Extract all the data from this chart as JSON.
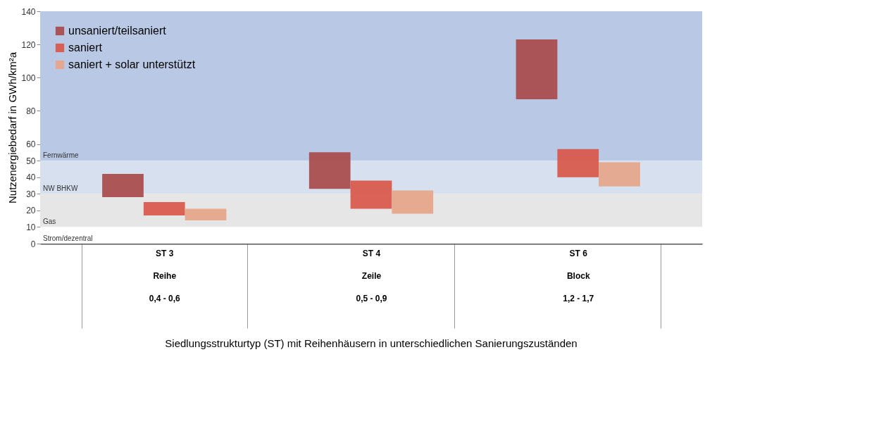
{
  "chart_data": {
    "type": "bar",
    "annotations": [
      "Siedlungsstrukturtyp (ST) mit Reihenhäusern in unterschiedlichen Sanierungszuständen"
    ],
    "ylabel": "Nutzenergiebedarf in GWh/km²a",
    "categories": [
      "ST 3\nReihe\n0,4 - 0,6",
      "ST 4\nZeile\n0,5 - 0,9",
      "ST 6\nBlock\n1,2 - 1,7"
    ],
    "series": [
      {
        "name": "unsaniert/teilsaniert",
        "color": "#a94a4b",
        "base": [
          28,
          33,
          87
        ],
        "values": [
          14,
          22,
          36
        ]
      },
      {
        "name": "saniert",
        "color": "#d9574a",
        "base": [
          17,
          21,
          40
        ],
        "values": [
          8,
          17,
          17
        ]
      },
      {
        "name": "saniert + solar unterstützt",
        "color": "#e6a58a",
        "base": [
          14,
          18,
          34.5
        ],
        "values": [
          7,
          14,
          14.5
        ]
      }
    ],
    "bands": [
      {
        "axis": "y",
        "from": 50,
        "to": 140,
        "label": "Fernwärme",
        "color": "#b9c9e5"
      },
      {
        "axis": "y",
        "from": 30,
        "to": 50,
        "label": "NW BHKW",
        "color": "#d7e0ef"
      },
      {
        "axis": "y",
        "from": 10,
        "to": 30,
        "label": "Gas",
        "color": "#e6e6e6"
      },
      {
        "axis": "y",
        "from": 0,
        "to": 10,
        "label": "Strom/dezentral",
        "color": "#ffffff"
      }
    ],
    "ylim": [
      0,
      140
    ],
    "yticks": [
      0,
      10,
      20,
      30,
      40,
      50,
      60,
      80,
      100,
      120,
      140
    ],
    "grid": false,
    "legend": "top left"
  }
}
